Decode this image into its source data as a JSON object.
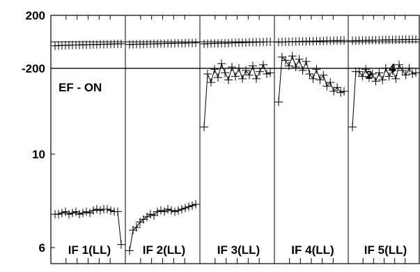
{
  "chart_data": {
    "type": "line",
    "top_panel": {
      "y_tick_labels": [
        "200",
        "-200"
      ],
      "ylim": [
        -200,
        200
      ],
      "reference_line": 0,
      "series": [
        {
          "values": [
            -30,
            -28,
            -27,
            -26,
            -25,
            -24,
            -24,
            -23,
            -22,
            -22,
            -21,
            -20,
            -20,
            -19,
            -18,
            -18,
            -17,
            -16,
            -15,
            -15
          ]
        },
        {
          "values": [
            -20,
            -19,
            -18,
            -18,
            -17,
            -16,
            -16,
            -15,
            -14,
            -14,
            -13,
            -12,
            -12,
            -11,
            -10,
            -10,
            -9,
            -8,
            -8,
            -7
          ]
        },
        {
          "values": [
            -15,
            -14,
            -13,
            -12,
            -11,
            -10,
            -10,
            -9,
            -8,
            -7,
            -6,
            -6,
            -5,
            -4,
            -3,
            -3,
            -2,
            -1,
            0,
            0
          ]
        },
        {
          "values": [
            -2,
            -1,
            0,
            1,
            1,
            2,
            3,
            3,
            4,
            5,
            5,
            6,
            6,
            7,
            8,
            8,
            9,
            9,
            10,
            10
          ]
        },
        {
          "values": [
            8,
            9,
            10,
            10,
            11,
            12,
            12,
            13,
            13,
            14,
            14,
            15,
            15,
            16,
            16,
            17,
            17,
            18,
            18,
            19
          ]
        }
      ]
    },
    "bottom_panel": {
      "scale": "log",
      "y_tick_labels": [
        {
          "value": 10,
          "label": "10"
        },
        {
          "value": 6,
          "label": "6"
        }
      ],
      "annotation": "EF - ON",
      "series": [
        {
          "label": "IF 1(LL)",
          "values": [
            7.2,
            7.2,
            7.25,
            7.3,
            7.2,
            7.25,
            7.3,
            7.2,
            7.25,
            7.3,
            7.25,
            7.35,
            7.4,
            7.35,
            7.4,
            7.4,
            7.35,
            7.3,
            7.3,
            6.1
          ]
        },
        {
          "label": "IF 2(LL)",
          "values": [
            5.9,
            6.6,
            6.7,
            6.9,
            7.0,
            7.1,
            7.2,
            7.15,
            7.3,
            7.35,
            7.3,
            7.4,
            7.35,
            7.3,
            7.35,
            7.4,
            7.45,
            7.5,
            7.55,
            7.6
          ]
        },
        {
          "label": "IF 3(LL)",
          "values": [
            11.6,
            15.5,
            14.8,
            15.9,
            15.2,
            16.4,
            15.6,
            15.0,
            16.1,
            15.3,
            16.0,
            15.1,
            15.8,
            15.4,
            16.2,
            15.1,
            15.7,
            16.3,
            15.5,
            15.6
          ]
        },
        {
          "label": "IF 4(LL)",
          "values": [
            13.3,
            17.0,
            16.7,
            16.2,
            17.1,
            16.1,
            16.8,
            15.8,
            16.6,
            15.5,
            15.1,
            15.9,
            15.0,
            15.4,
            14.5,
            14.8,
            14.1,
            14.4,
            14.0,
            14.1
          ]
        },
        {
          "label": "IF 5(LL)",
          "values": [
            11.6,
            15.7,
            15.7,
            15.3,
            15.9,
            15.2,
            15.5,
            14.9,
            15.6,
            15.0,
            16.0,
            15.3,
            15.8,
            15.1,
            16.3,
            15.8,
            15.4,
            16.0,
            15.5,
            15.6
          ]
        }
      ],
      "overlay_labels": [
        {
          "series": 4,
          "index": 5,
          "text": "2"
        },
        {
          "series": 4,
          "index": 12,
          "text": "4"
        }
      ]
    }
  }
}
